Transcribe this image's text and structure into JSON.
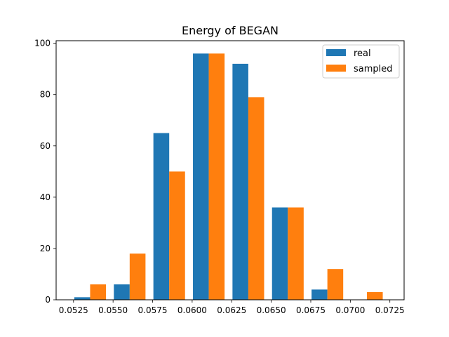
{
  "chart_data": {
    "type": "bar",
    "title": "Energy of BEGAN",
    "xlabel": "",
    "ylabel": "",
    "x_ticks": [
      "0.0525",
      "0.0550",
      "0.0575",
      "0.0600",
      "0.0625",
      "0.0650",
      "0.0675",
      "0.0700",
      "0.0725"
    ],
    "y_ticks": [
      "0",
      "20",
      "40",
      "60",
      "80",
      "100"
    ],
    "xlim": [
      0.0514,
      0.0734
    ],
    "ylim": [
      0,
      101
    ],
    "grid": false,
    "legend_position": "top-right",
    "bin_edges": [
      0.0523,
      0.0548,
      0.0573,
      0.0598,
      0.0623,
      0.0648,
      0.0673,
      0.0698,
      0.0723
    ],
    "series": [
      {
        "name": "real",
        "color": "#1f77b4",
        "values": [
          1,
          6,
          65,
          96,
          92,
          36,
          4,
          0
        ]
      },
      {
        "name": "sampled",
        "color": "#ff7f0e",
        "values": [
          6,
          18,
          50,
          96,
          79,
          36,
          12,
          3
        ]
      }
    ]
  }
}
